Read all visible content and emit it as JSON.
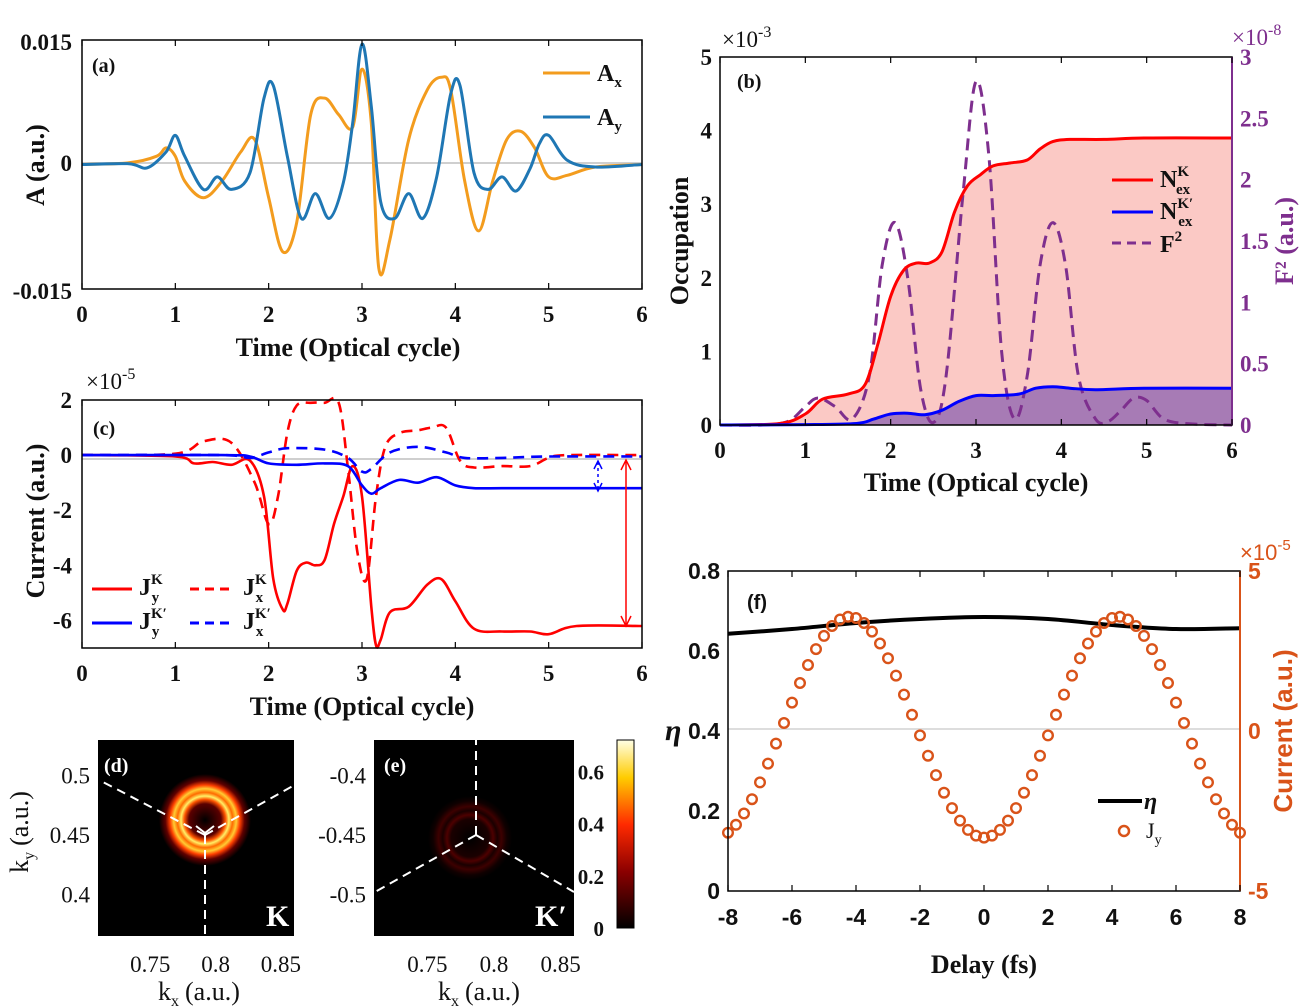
{
  "colors": {
    "orange": "#f39c1e",
    "teal": "#1f77b4",
    "red": "#ff0000",
    "blue": "#0000ff",
    "purple": "#7e2f8e",
    "fill_red": "#fbc9c5",
    "fill_purple": "#a77bb5",
    "scatter_orange": "#d95319",
    "black": "#000000"
  },
  "chart_data": [
    {
      "id": "a",
      "type": "line",
      "panel_label": "(a)",
      "xlabel": "Time (Optical cycle)",
      "ylabel": "A (a.u.)",
      "xlim": [
        0,
        6
      ],
      "ylim": [
        -0.015,
        0.015
      ],
      "xticks": [
        "0",
        "1",
        "2",
        "3",
        "4",
        "5",
        "6"
      ],
      "yticks": [
        "0.015",
        "0",
        "-0.015"
      ],
      "series": [
        {
          "name": "A_x",
          "legend_main": "A",
          "legend_sub": "x",
          "x": [
            0,
            0.5,
            0.8,
            0.9,
            1.0,
            1.1,
            1.3,
            1.5,
            1.7,
            1.85,
            2.0,
            2.15,
            2.3,
            2.45,
            2.6,
            2.75,
            2.9,
            3.0,
            3.1,
            3.18,
            3.3,
            3.5,
            3.7,
            3.85,
            3.95,
            4.1,
            4.25,
            4.4,
            4.55,
            4.7,
            4.85,
            5.0,
            5.2,
            5.5,
            6.0
          ],
          "y": [
            0,
            0.0002,
            0.001,
            0.002,
            0.001,
            -0.002,
            -0.004,
            -0.002,
            0.0015,
            0.003,
            -0.004,
            -0.0105,
            -0.007,
            0.006,
            0.008,
            0.006,
            0.0045,
            0.0115,
            0.005,
            -0.0125,
            -0.009,
            0.003,
            0.009,
            0.0105,
            0.009,
            -0.002,
            -0.008,
            -0.002,
            0.003,
            0.004,
            0.002,
            -0.0015,
            -0.0013,
            -0.0003,
            0
          ]
        },
        {
          "name": "A_y",
          "legend_main": "A",
          "legend_sub": "y",
          "x": [
            0,
            0.5,
            0.7,
            0.9,
            1.0,
            1.1,
            1.3,
            1.45,
            1.6,
            1.8,
            1.95,
            2.05,
            2.2,
            2.35,
            2.5,
            2.65,
            2.8,
            2.9,
            3.0,
            3.1,
            3.2,
            3.35,
            3.5,
            3.65,
            3.8,
            3.95,
            4.05,
            4.2,
            4.35,
            4.5,
            4.65,
            4.8,
            4.9,
            5.0,
            5.2,
            5.5,
            6.0
          ],
          "y": [
            0,
            0.0001,
            -0.0004,
            0.0015,
            0.0035,
            0.001,
            -0.003,
            -0.0015,
            -0.003,
            -0.001,
            0.008,
            0.0095,
            0.001,
            -0.0065,
            -0.0035,
            -0.0065,
            -0.0022,
            0.005,
            0.0145,
            0.007,
            -0.0045,
            -0.0065,
            -0.0035,
            -0.0065,
            -0.0015,
            0.0085,
            0.0095,
            -0.001,
            -0.003,
            -0.0015,
            -0.0032,
            -0.0005,
            0.0025,
            0.0035,
            0.0005,
            -0.0003,
            0
          ]
        }
      ]
    },
    {
      "id": "b",
      "type": "area",
      "panel_label": "(b)",
      "xlabel": "Time (Optical cycle)",
      "ylabel": "Occupation",
      "ylabel_right": "F² (a.u.)",
      "y_exponent": "×10",
      "y_exponent_power": "-3",
      "y_right_exponent": "×10",
      "y_right_exponent_power": "-8",
      "xlim": [
        0,
        6
      ],
      "ylim": [
        0,
        5
      ],
      "ylim_right": [
        0,
        3
      ],
      "xticks": [
        "0",
        "1",
        "2",
        "3",
        "4",
        "5",
        "6"
      ],
      "yticks": [
        "0",
        "1",
        "2",
        "3",
        "4",
        "5"
      ],
      "yticks_right": [
        "0",
        "0.5",
        "1",
        "1.5",
        "2",
        "2.5",
        "3"
      ],
      "series": [
        {
          "name": "N_ex^K",
          "legend_main": "N",
          "legend_sup": "K",
          "legend_sub": "ex",
          "x": [
            0,
            0.7,
            1.0,
            1.2,
            1.5,
            1.7,
            1.85,
            2.0,
            2.15,
            2.3,
            2.45,
            2.6,
            2.75,
            2.9,
            3.05,
            3.2,
            3.4,
            3.6,
            3.75,
            3.9,
            4.1,
            4.5,
            5.0,
            6.0
          ],
          "y": [
            0,
            0.02,
            0.15,
            0.35,
            0.42,
            0.55,
            1.1,
            1.75,
            2.1,
            2.2,
            2.2,
            2.35,
            2.9,
            3.25,
            3.4,
            3.52,
            3.56,
            3.6,
            3.75,
            3.85,
            3.88,
            3.88,
            3.9,
            3.9
          ]
        },
        {
          "name": "N_ex^K'",
          "legend_main": "N",
          "legend_sup": "K′",
          "legend_sub": "ex",
          "x": [
            0,
            1.0,
            1.6,
            1.8,
            2.0,
            2.2,
            2.4,
            2.6,
            2.8,
            3.0,
            3.2,
            3.5,
            3.7,
            3.9,
            4.1,
            4.4,
            5.0,
            6.0
          ],
          "y": [
            0,
            0.005,
            0.02,
            0.08,
            0.15,
            0.16,
            0.14,
            0.2,
            0.32,
            0.4,
            0.4,
            0.42,
            0.5,
            0.52,
            0.5,
            0.48,
            0.5,
            0.5
          ]
        },
        {
          "name": "F^2",
          "legend_main": "F",
          "legend_sup": "2",
          "x": [
            0,
            0.5,
            0.8,
            1.0,
            1.15,
            1.35,
            1.55,
            1.75,
            1.9,
            2.05,
            2.2,
            2.35,
            2.5,
            2.65,
            2.85,
            3.0,
            3.15,
            3.3,
            3.45,
            3.6,
            3.75,
            3.9,
            4.05,
            4.2,
            4.4,
            4.55,
            4.7,
            4.85,
            5.0,
            5.2,
            5.5,
            6.0
          ],
          "y": [
            0,
            0,
            0.03,
            0.15,
            0.22,
            0.15,
            0.05,
            0.4,
            1.3,
            1.65,
            1.2,
            0.3,
            0.02,
            0.4,
            1.9,
            2.8,
            2.2,
            0.6,
            0.05,
            0.4,
            1.3,
            1.65,
            1.3,
            0.4,
            0.05,
            0.03,
            0.12,
            0.22,
            0.2,
            0.05,
            0.01,
            0
          ]
        }
      ]
    },
    {
      "id": "c",
      "type": "line",
      "panel_label": "(c)",
      "xlabel": "Time (Optical cycle)",
      "ylabel": "Current (a.u.)",
      "y_exponent": "×10",
      "y_exponent_power": "-5",
      "xlim": [
        0,
        6
      ],
      "ylim": [
        -7,
        2
      ],
      "xticks": [
        "0",
        "1",
        "2",
        "3",
        "4",
        "5",
        "6"
      ],
      "yticks": [
        "2",
        "0",
        "-2",
        "-4",
        "-6"
      ],
      "series": [
        {
          "name": "J_y^K",
          "legend_main": "J",
          "legend_sup": "K",
          "legend_sub": "y",
          "style": "solid",
          "x": [
            0,
            1.0,
            1.2,
            1.4,
            1.6,
            1.8,
            1.95,
            2.05,
            2.15,
            2.2,
            2.3,
            2.4,
            2.5,
            2.6,
            2.7,
            2.8,
            2.9,
            3.0,
            3.1,
            3.15,
            3.2,
            3.3,
            3.5,
            3.7,
            3.85,
            4.0,
            4.2,
            4.5,
            4.8,
            5.0,
            5.3,
            6.0
          ],
          "y": [
            0,
            -0.05,
            -0.3,
            -0.25,
            -0.35,
            -0.2,
            -1.5,
            -4.5,
            -5.6,
            -5.4,
            -4.2,
            -3.9,
            -4.0,
            -3.8,
            -2.5,
            -1.5,
            -0.4,
            -1.5,
            -5.5,
            -6.9,
            -6.7,
            -5.7,
            -5.5,
            -4.7,
            -4.5,
            -5.3,
            -6.3,
            -6.4,
            -6.4,
            -6.5,
            -6.2,
            -6.2
          ]
        },
        {
          "name": "J_x^K",
          "legend_main": "J",
          "legend_sup": "K",
          "legend_sub": "x",
          "style": "dashed",
          "x": [
            0,
            1.0,
            1.3,
            1.6,
            1.85,
            2.0,
            2.1,
            2.2,
            2.3,
            2.45,
            2.6,
            2.75,
            2.85,
            2.95,
            3.05,
            3.15,
            3.25,
            3.4,
            3.6,
            3.75,
            3.9,
            4.05,
            4.2,
            4.5,
            4.8,
            5.0,
            5.2,
            6.0
          ],
          "y": [
            0,
            0.05,
            0.5,
            0.45,
            -1.0,
            -2.5,
            -1.5,
            0.8,
            1.8,
            1.9,
            1.9,
            1.9,
            -0.5,
            -3.5,
            -4.5,
            -1.5,
            0.3,
            0.8,
            0.9,
            1.0,
            1.0,
            -0.2,
            -0.45,
            -0.4,
            -0.4,
            -0.1,
            0,
            0
          ]
        },
        {
          "name": "J_y^K'",
          "legend_main": "J",
          "legend_sup": "K′",
          "legend_sub": "y",
          "style": "solid",
          "x": [
            0,
            1.5,
            1.8,
            2.0,
            2.3,
            2.6,
            2.85,
            3.0,
            3.1,
            3.2,
            3.4,
            3.6,
            3.8,
            4.0,
            4.2,
            4.5,
            5.0,
            6.0
          ],
          "y": [
            0,
            0,
            -0.05,
            -0.3,
            -0.35,
            -0.3,
            -0.4,
            -1.1,
            -1.4,
            -1.2,
            -0.9,
            -1.0,
            -0.8,
            -1.1,
            -1.2,
            -1.2,
            -1.2,
            -1.2
          ]
        },
        {
          "name": "J_x^K'",
          "legend_main": "J",
          "legend_sup": "K′",
          "legend_sub": "x",
          "style": "dashed",
          "x": [
            0,
            1.5,
            1.8,
            2.0,
            2.2,
            2.6,
            2.85,
            3.0,
            3.1,
            3.3,
            3.6,
            3.9,
            4.1,
            4.5,
            5.0,
            6.0
          ],
          "y": [
            0,
            0,
            -0.1,
            0.1,
            0.25,
            0.2,
            -0.1,
            -0.6,
            -0.5,
            0.1,
            0.3,
            0.1,
            -0.1,
            -0.1,
            -0.05,
            -0.05
          ]
        }
      ]
    },
    {
      "id": "d",
      "type": "heatmap",
      "panel_label": "(d)",
      "valley_label": "K",
      "xlabel": "k",
      "xlabel_sub": "x",
      "xlabel_unit": "(a.u.)",
      "ylabel": "k",
      "ylabel_sub": "y",
      "ylabel_unit": "(a.u.)",
      "xlim": [
        0.71,
        0.86
      ],
      "ylim": [
        0.365,
        0.53
      ],
      "xticks": [
        "0.75",
        "0.8",
        "0.85"
      ],
      "yticks": [
        "0.5",
        "0.45",
        "0.4"
      ]
    },
    {
      "id": "e",
      "type": "heatmap",
      "panel_label": "(e)",
      "valley_label": "K′",
      "xlabel": "k",
      "xlabel_sub": "x",
      "xlabel_unit": "(a.u.)",
      "xlim": [
        0.71,
        0.86
      ],
      "ylim": [
        -0.535,
        -0.37
      ],
      "xticks": [
        "0.75",
        "0.8",
        "0.85"
      ],
      "yticks": [
        "-0.4",
        "-0.45",
        "-0.5"
      ],
      "colorbar_ticks": [
        "0.6",
        "0.4",
        "0.2",
        "0"
      ],
      "colorbar_range": [
        0,
        0.72
      ]
    },
    {
      "id": "f",
      "type": "scatter",
      "panel_label": "(f)",
      "xlabel": "Delay (fs)",
      "ylabel": "η",
      "ylabel_right": "Current (a.u.)",
      "y_right_exponent": "×10",
      "y_right_exponent_power": "-5",
      "xlim": [
        -8,
        8
      ],
      "ylim": [
        0,
        0.8
      ],
      "ylim_right": [
        -5,
        5
      ],
      "xticks": [
        "-8",
        "-6",
        "-4",
        "-2",
        "0",
        "2",
        "4",
        "6",
        "8"
      ],
      "yticks": [
        "0",
        "0.2",
        "0.4",
        "0.6",
        "0.8"
      ],
      "yticks_right": [
        "5",
        "0",
        "-5"
      ],
      "series": [
        {
          "name": "η",
          "legend_label": "η",
          "style": "line",
          "x": [
            -8,
            -6,
            -4,
            -2,
            0,
            2,
            4,
            6,
            8
          ],
          "y": [
            0.643,
            0.655,
            0.67,
            0.68,
            0.685,
            0.68,
            0.665,
            0.655,
            0.657
          ]
        },
        {
          "name": "J_y",
          "legend_main": "J",
          "legend_sub": "y",
          "style": "circles",
          "note": "J_y = 0.12 - 3.45*cos(pi*delay/4.2) (x1e-5), sampled at 65 points from -8 to 8 fs"
        }
      ]
    }
  ]
}
